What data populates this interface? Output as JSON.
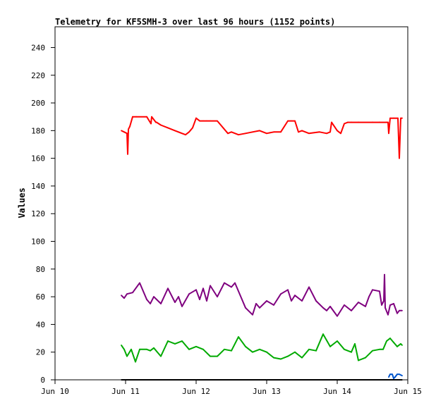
{
  "chart_data": {
    "type": "line",
    "title": "Telemetry for KF5SMH-3 over last 96 hours (1152 points)",
    "ylabel": "Values",
    "xlabel": "",
    "ylim": [
      0,
      255
    ],
    "xlim": [
      0,
      5
    ],
    "grid": false,
    "yticks": [
      0,
      20,
      40,
      60,
      80,
      100,
      120,
      140,
      160,
      180,
      200,
      220,
      240
    ],
    "xticks": [
      {
        "x": 0,
        "label": "Jun 10"
      },
      {
        "x": 1,
        "label": "Jun 11"
      },
      {
        "x": 2,
        "label": "Jun 12"
      },
      {
        "x": 3,
        "label": "Jun 13"
      },
      {
        "x": 4,
        "label": "Jun 14"
      },
      {
        "x": 5,
        "label": "Jun 15"
      }
    ],
    "series": [
      {
        "color": "#ff0000",
        "x": [
          0.94,
          0.98,
          1.02,
          1.03,
          1.04,
          1.06,
          1.1,
          1.15,
          1.3,
          1.36,
          1.37,
          1.43,
          1.44,
          1.5,
          1.6,
          1.7,
          1.8,
          1.85,
          1.9,
          1.95,
          2.0,
          2.05,
          2.1,
          2.15,
          2.2,
          2.3,
          2.45,
          2.5,
          2.6,
          2.7,
          2.8,
          2.9,
          3.0,
          3.1,
          3.2,
          3.3,
          3.35,
          3.4,
          3.45,
          3.5,
          3.6,
          3.75,
          3.85,
          3.9,
          3.92,
          4.0,
          4.05,
          4.1,
          4.15,
          4.2,
          4.3,
          4.5,
          4.6,
          4.7,
          4.72,
          4.73,
          4.75,
          4.8,
          4.86,
          4.88,
          4.9,
          4.92
        ],
        "y": [
          180,
          179,
          178,
          163,
          181,
          183,
          190,
          190,
          190,
          185,
          190,
          186,
          186,
          184,
          182,
          180,
          178,
          177,
          179,
          182,
          189,
          187,
          187,
          187,
          187,
          187,
          178,
          179,
          177,
          178,
          179,
          180,
          178,
          179,
          179,
          187,
          187,
          187,
          179,
          180,
          178,
          179,
          178,
          179,
          186,
          180,
          178,
          185,
          186,
          186,
          186,
          186,
          186,
          186,
          186,
          178,
          189,
          189,
          189,
          160,
          189,
          189
        ]
      },
      {
        "color": "#7f007f",
        "x": [
          0.94,
          0.98,
          1.02,
          1.1,
          1.2,
          1.3,
          1.35,
          1.4,
          1.5,
          1.6,
          1.7,
          1.75,
          1.8,
          1.9,
          2.0,
          2.05,
          2.1,
          2.15,
          2.2,
          2.3,
          2.4,
          2.5,
          2.55,
          2.65,
          2.7,
          2.8,
          2.85,
          2.9,
          3.0,
          3.1,
          3.2,
          3.3,
          3.35,
          3.4,
          3.5,
          3.6,
          3.7,
          3.8,
          3.85,
          3.9,
          4.0,
          4.1,
          4.2,
          4.3,
          4.4,
          4.45,
          4.5,
          4.6,
          4.63,
          4.66,
          4.67,
          4.68,
          4.72,
          4.75,
          4.8,
          4.85,
          4.88,
          4.92
        ],
        "y": [
          61,
          59,
          62,
          63,
          70,
          58,
          55,
          60,
          55,
          66,
          56,
          60,
          53,
          62,
          65,
          58,
          66,
          57,
          68,
          60,
          70,
          67,
          70,
          58,
          52,
          47,
          55,
          52,
          57,
          54,
          62,
          65,
          57,
          61,
          57,
          67,
          57,
          52,
          50,
          53,
          46,
          54,
          50,
          56,
          53,
          60,
          65,
          64,
          54,
          57,
          76,
          52,
          47,
          54,
          55,
          48,
          50,
          50
        ]
      },
      {
        "color": "#00aa00",
        "x": [
          0.94,
          0.98,
          1.02,
          1.08,
          1.14,
          1.2,
          1.3,
          1.35,
          1.4,
          1.5,
          1.6,
          1.7,
          1.8,
          1.9,
          2.0,
          2.1,
          2.2,
          2.3,
          2.4,
          2.5,
          2.6,
          2.7,
          2.8,
          2.9,
          3.0,
          3.1,
          3.2,
          3.3,
          3.4,
          3.5,
          3.6,
          3.7,
          3.8,
          3.9,
          4.0,
          4.1,
          4.2,
          4.25,
          4.3,
          4.4,
          4.5,
          4.6,
          4.65,
          4.7,
          4.75,
          4.8,
          4.85,
          4.9,
          4.92
        ],
        "y": [
          25,
          22,
          17,
          22,
          13,
          22,
          22,
          21,
          23,
          17,
          28,
          26,
          28,
          22,
          24,
          22,
          17,
          17,
          22,
          21,
          31,
          24,
          20,
          22,
          20,
          16,
          15,
          17,
          20,
          16,
          22,
          21,
          33,
          24,
          28,
          22,
          20,
          26,
          14,
          16,
          21,
          22,
          22,
          28,
          30,
          27,
          24,
          26,
          25
        ]
      },
      {
        "color": "#0055cc",
        "x": [
          4.73,
          4.75,
          4.78,
          4.8,
          4.82,
          4.85,
          4.88,
          4.92
        ],
        "y": [
          2,
          4,
          4,
          1,
          2,
          4,
          4,
          3
        ]
      },
      {
        "color": "#000000",
        "x": [
          0.94,
          4.92
        ],
        "y": [
          0,
          0
        ]
      }
    ]
  }
}
